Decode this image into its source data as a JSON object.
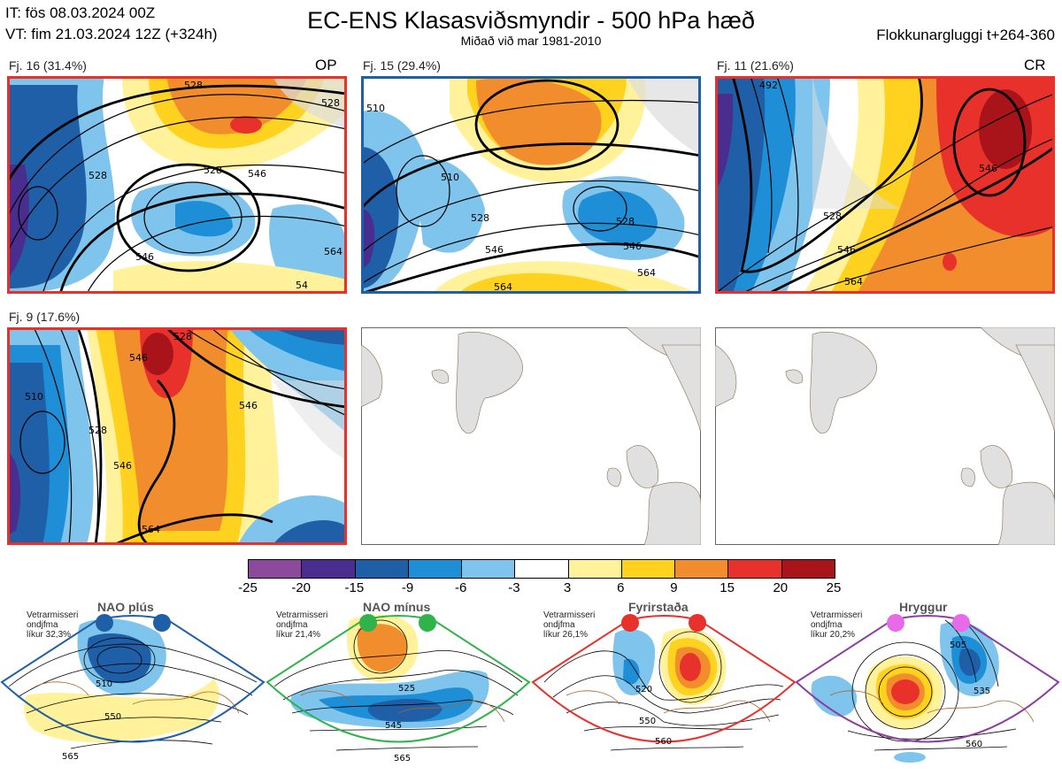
{
  "header": {
    "issue_time": "IT: fös 08.03.2024 00Z",
    "valid_time": "VT: fim 21.03.2024 12Z  (+324h)",
    "title": "EC-ENS Klasasviðsmyndir - 500 hPa hæð",
    "subtitle": "Miðað við mar 1981-2010",
    "window": "Flokkunargluggi t+264-360"
  },
  "clusters": [
    {
      "label": "Fj. 16 (31.4%)",
      "tag": "OP",
      "border": "#e8312b",
      "contours": [
        "528",
        "528",
        "528",
        "528",
        "546",
        "546",
        "564",
        "54"
      ]
    },
    {
      "label": "Fj. 15 (29.4%)",
      "tag": "",
      "border": "#1f5fa8",
      "contours": [
        "510",
        "510",
        "528",
        "528",
        "546",
        "546",
        "564",
        "564"
      ]
    },
    {
      "label": "Fj. 11 (21.6%)",
      "tag": "CR",
      "border": "#e8312b",
      "contours": [
        "492",
        "528",
        "546",
        "546",
        "564"
      ]
    },
    {
      "label": "Fj. 9 (17.6%)",
      "tag": "",
      "border": "#e8312b",
      "contours": [
        "510",
        "528",
        "528",
        "546",
        "546",
        "546",
        "564"
      ]
    }
  ],
  "colorbar": {
    "ticks": [
      "-25",
      "-20",
      "-15",
      "-9",
      "-6",
      "-3",
      "3",
      "6",
      "9",
      "15",
      "20",
      "25"
    ],
    "colors": [
      "#8b4a9c",
      "#4a2e8f",
      "#1f5fa8",
      "#1e8fd6",
      "#7ec4ec",
      "#ffffff",
      "#fff29a",
      "#ffd21f",
      "#f28d2e",
      "#e8312b",
      "#a8141a"
    ]
  },
  "regimes": [
    {
      "name": "NAO plús",
      "note1": "Vetrarmisseri",
      "note2": "ondjfma",
      "note3": "líkur 32,3%",
      "dot_color": "#1f5fa8",
      "border": "#1f5fa8",
      "contours": [
        "510",
        "550",
        "565"
      ]
    },
    {
      "name": "NAO mínus",
      "note1": "Vetrarmisseri",
      "note2": "ondjfma",
      "note3": "líkur 21,4%",
      "dot_color": "#2fb34a",
      "border": "#2fb34a",
      "contours": [
        "525",
        "545",
        "565"
      ]
    },
    {
      "name": "Fyrirstaða",
      "note1": "Vetrarmisseri",
      "note2": "ondjfma",
      "note3": "líkur 26,1%",
      "dot_color": "#e8312b",
      "border": "#e8312b",
      "contours": [
        "520",
        "550",
        "560"
      ]
    },
    {
      "name": "Hryggur",
      "note1": "Vetrarmisseri",
      "note2": "ondjfma",
      "note3": "líkur 20,2%",
      "dot_color": "#e76ae8",
      "border": "#8b3fa0",
      "contours": [
        "505",
        "535",
        "560"
      ]
    }
  ]
}
